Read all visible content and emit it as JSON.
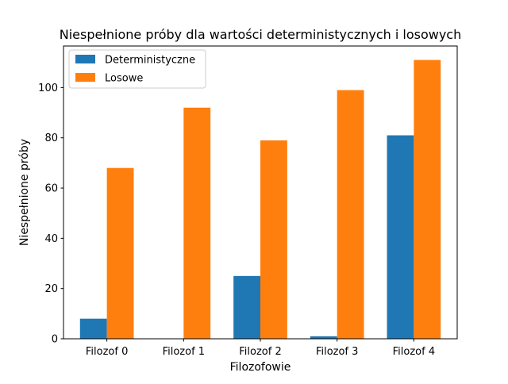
{
  "chart_data": {
    "type": "bar",
    "title": "Niespełnione próby dla wartości deterministycznych i losowych",
    "xlabel": "Filozofowie",
    "ylabel": "Niespełnione próby",
    "categories": [
      "Filozof 0",
      "Filozof 1",
      "Filozof 2",
      "Filozof 3",
      "Filozof 4"
    ],
    "series": [
      {
        "name": "Deterministyczne",
        "color": "#1f77b4",
        "values": [
          8,
          0,
          25,
          1,
          81
        ]
      },
      {
        "name": "Losowe",
        "color": "#ff7f0e",
        "values": [
          68,
          92,
          79,
          99,
          111
        ]
      }
    ],
    "ylim": [
      0,
      116.55
    ],
    "yticks": [
      0,
      20,
      40,
      60,
      80,
      100
    ],
    "grid": false,
    "legend_position": "top-left"
  }
}
